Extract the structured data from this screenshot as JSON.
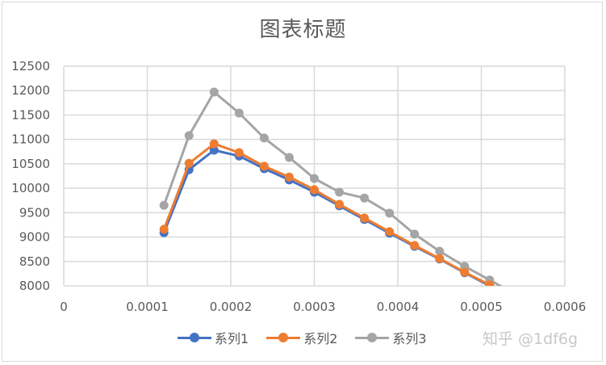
{
  "chart_data": {
    "type": "line",
    "title": "图表标题",
    "xlabel": "",
    "ylabel": "",
    "xlim": [
      0,
      0.0006
    ],
    "ylim": [
      8000,
      12500
    ],
    "x_ticks": [
      "0",
      "0.0001",
      "0.0002",
      "0.0003",
      "0.0004",
      "0.0005",
      "0.0006"
    ],
    "y_ticks": [
      "8000",
      "8500",
      "9000",
      "9500",
      "10000",
      "10500",
      "11000",
      "11500",
      "12000",
      "12500"
    ],
    "grid": true,
    "legend_position": "bottom",
    "x": [
      0.00012,
      0.00015,
      0.00018,
      0.00021,
      0.00024,
      0.00027,
      0.0003,
      0.00033,
      0.00036,
      0.00039,
      0.00042,
      0.00045,
      0.00048,
      0.00051
    ],
    "series": [
      {
        "name": "系列1",
        "color": "#4472c4",
        "values": [
          9090,
          10380,
          10780,
          10660,
          10400,
          10170,
          9920,
          9640,
          9360,
          9080,
          8810,
          8550,
          8270,
          8000
        ]
      },
      {
        "name": "系列2",
        "color": "#ed7d31",
        "values": [
          9160,
          10510,
          10910,
          10730,
          10450,
          10230,
          9970,
          9670,
          9390,
          9110,
          8830,
          8560,
          8280,
          8020
        ]
      },
      {
        "name": "系列3",
        "color": "#a5a5a5",
        "values": [
          9650,
          11080,
          11970,
          11540,
          11030,
          10630,
          10200,
          9920,
          9800,
          9490,
          9060,
          8710,
          8400,
          8120
        ]
      }
    ]
  },
  "watermark": "知乎 @1df6g"
}
